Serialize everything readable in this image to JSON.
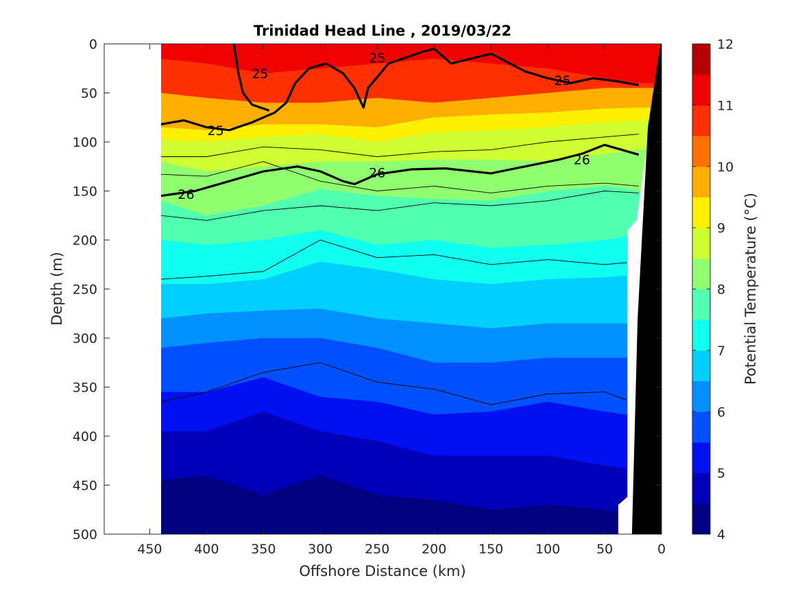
{
  "chart_data": {
    "type": "contourf",
    "title": "Trinidad Head Line , 2019/03/22",
    "xlabel": "Offshore Distance (km)",
    "ylabel": "Depth (m)",
    "colorbar_label": "Potential Temperature (°C)",
    "xlim": [
      490,
      0
    ],
    "ylim": [
      500,
      0
    ],
    "x_direction": "reversed",
    "y_direction": "reversed",
    "x_ticks": [
      450,
      400,
      350,
      300,
      250,
      200,
      150,
      100,
      50,
      0
    ],
    "y_ticks": [
      0,
      50,
      100,
      150,
      200,
      250,
      300,
      350,
      400,
      450,
      500
    ],
    "colorbar": {
      "min": 4,
      "max": 12,
      "step": 0.5,
      "tick_labels": [
        12,
        11,
        10,
        9,
        8,
        7,
        6,
        5,
        4
      ],
      "level_colors": [
        "#000080",
        "#0000b8",
        "#0010f0",
        "#0050ff",
        "#0090ff",
        "#00cfff",
        "#10ffef",
        "#50ffaf",
        "#90ff70",
        "#cfff30",
        "#ffef00",
        "#ffaf00",
        "#ff7000",
        "#ff3000",
        "#f00000",
        "#b80000"
      ]
    },
    "data_extent_km": [
      440,
      0
    ],
    "isotherm_profiles": [
      {
        "temp": 11,
        "points": [
          [
            440,
            15
          ],
          [
            400,
            20
          ],
          [
            350,
            30
          ],
          [
            300,
            25
          ],
          [
            250,
            20
          ],
          [
            200,
            15
          ],
          [
            150,
            20
          ],
          [
            100,
            25
          ],
          [
            50,
            35
          ],
          [
            20,
            40
          ]
        ]
      },
      {
        "temp": 10,
        "points": [
          [
            440,
            50
          ],
          [
            400,
            55
          ],
          [
            350,
            60
          ],
          [
            300,
            60
          ],
          [
            250,
            55
          ],
          [
            200,
            60
          ],
          [
            150,
            55
          ],
          [
            100,
            50
          ],
          [
            50,
            45
          ],
          [
            20,
            45
          ]
        ]
      },
      {
        "temp": 9.5,
        "points": [
          [
            440,
            85
          ],
          [
            400,
            88
          ],
          [
            350,
            82
          ],
          [
            300,
            82
          ],
          [
            250,
            85
          ],
          [
            200,
            75
          ],
          [
            150,
            72
          ],
          [
            100,
            70
          ],
          [
            50,
            66
          ],
          [
            20,
            65
          ]
        ]
      },
      {
        "temp": 9,
        "points": [
          [
            440,
            98
          ],
          [
            400,
            100
          ],
          [
            350,
            95
          ],
          [
            300,
            92
          ],
          [
            250,
            100
          ],
          [
            200,
            90
          ],
          [
            150,
            88
          ],
          [
            100,
            85
          ],
          [
            50,
            80
          ],
          [
            20,
            78
          ]
        ]
      },
      {
        "temp": 8.5,
        "points": [
          [
            440,
            120
          ],
          [
            400,
            130
          ],
          [
            350,
            125
          ],
          [
            300,
            120
          ],
          [
            250,
            120
          ],
          [
            200,
            118
          ],
          [
            150,
            118
          ],
          [
            100,
            120
          ],
          [
            50,
            112
          ],
          [
            20,
            108
          ]
        ]
      },
      {
        "temp": 8,
        "points": [
          [
            440,
            160
          ],
          [
            400,
            175
          ],
          [
            350,
            165
          ],
          [
            300,
            148
          ],
          [
            250,
            155
          ],
          [
            200,
            158
          ],
          [
            150,
            160
          ],
          [
            100,
            150
          ],
          [
            50,
            145
          ],
          [
            20,
            150
          ]
        ]
      },
      {
        "temp": 7.5,
        "points": [
          [
            440,
            200
          ],
          [
            400,
            205
          ],
          [
            350,
            200
          ],
          [
            300,
            190
          ],
          [
            250,
            205
          ],
          [
            200,
            200
          ],
          [
            150,
            208
          ],
          [
            100,
            205
          ],
          [
            50,
            200
          ],
          [
            20,
            195
          ]
        ]
      },
      {
        "temp": 7,
        "points": [
          [
            440,
            245
          ],
          [
            400,
            245
          ],
          [
            350,
            240
          ],
          [
            300,
            222
          ],
          [
            250,
            230
          ],
          [
            200,
            240
          ],
          [
            150,
            245
          ],
          [
            100,
            240
          ],
          [
            50,
            238
          ],
          [
            20,
            235
          ]
        ]
      },
      {
        "temp": 6.5,
        "points": [
          [
            440,
            280
          ],
          [
            400,
            275
          ],
          [
            350,
            272
          ],
          [
            300,
            270
          ],
          [
            250,
            280
          ],
          [
            200,
            285
          ],
          [
            150,
            290
          ],
          [
            100,
            285
          ],
          [
            50,
            285
          ],
          [
            20,
            285
          ]
        ]
      },
      {
        "temp": 6,
        "points": [
          [
            440,
            310
          ],
          [
            400,
            305
          ],
          [
            350,
            300
          ],
          [
            300,
            300
          ],
          [
            250,
            310
          ],
          [
            200,
            325
          ],
          [
            150,
            325
          ],
          [
            100,
            320
          ],
          [
            50,
            320
          ],
          [
            20,
            320
          ]
        ]
      },
      {
        "temp": 5.5,
        "points": [
          [
            440,
            355
          ],
          [
            400,
            355
          ],
          [
            350,
            340
          ],
          [
            300,
            360
          ],
          [
            250,
            365
          ],
          [
            200,
            378
          ],
          [
            150,
            375
          ],
          [
            100,
            365
          ],
          [
            50,
            375
          ],
          [
            20,
            380
          ]
        ]
      },
      {
        "temp": 5,
        "points": [
          [
            440,
            395
          ],
          [
            400,
            395
          ],
          [
            350,
            375
          ],
          [
            300,
            395
          ],
          [
            250,
            405
          ],
          [
            200,
            420
          ],
          [
            150,
            420
          ],
          [
            100,
            420
          ],
          [
            50,
            430
          ],
          [
            20,
            435
          ]
        ]
      },
      {
        "temp": 4.5,
        "points": [
          [
            440,
            445
          ],
          [
            400,
            440
          ],
          [
            350,
            460
          ],
          [
            300,
            440
          ],
          [
            250,
            460
          ],
          [
            200,
            465
          ],
          [
            150,
            475
          ],
          [
            100,
            470
          ],
          [
            50,
            475
          ],
          [
            20,
            480
          ]
        ]
      }
    ],
    "density_contours_thin": [
      {
        "points": [
          [
            440,
            115
          ],
          [
            400,
            115
          ],
          [
            350,
            105
          ],
          [
            300,
            108
          ],
          [
            250,
            115
          ],
          [
            200,
            110
          ],
          [
            150,
            108
          ],
          [
            100,
            100
          ],
          [
            50,
            95
          ],
          [
            20,
            92
          ]
        ]
      },
      {
        "points": [
          [
            440,
            133
          ],
          [
            400,
            135
          ],
          [
            350,
            120
          ],
          [
            300,
            140
          ],
          [
            250,
            150
          ],
          [
            200,
            145
          ],
          [
            150,
            152
          ],
          [
            100,
            145
          ],
          [
            50,
            142
          ],
          [
            20,
            145
          ]
        ]
      },
      {
        "points": [
          [
            440,
            175
          ],
          [
            400,
            180
          ],
          [
            350,
            170
          ],
          [
            300,
            165
          ],
          [
            250,
            170
          ],
          [
            200,
            162
          ],
          [
            150,
            165
          ],
          [
            100,
            160
          ],
          [
            50,
            150
          ],
          [
            20,
            152
          ]
        ]
      },
      {
        "points": [
          [
            440,
            240
          ],
          [
            400,
            237
          ],
          [
            350,
            232
          ],
          [
            300,
            200
          ],
          [
            250,
            218
          ],
          [
            200,
            215
          ],
          [
            150,
            225
          ],
          [
            100,
            220
          ],
          [
            50,
            225
          ],
          [
            20,
            222
          ]
        ]
      },
      {
        "points": [
          [
            440,
            365
          ],
          [
            400,
            355
          ],
          [
            350,
            335
          ],
          [
            300,
            325
          ],
          [
            250,
            345
          ],
          [
            200,
            352
          ],
          [
            150,
            368
          ],
          [
            100,
            357
          ],
          [
            50,
            355
          ],
          [
            20,
            368
          ]
        ]
      }
    ],
    "density_contours_thick": [
      {
        "label": "25",
        "points": [
          [
            440,
            82
          ],
          [
            420,
            78
          ],
          [
            400,
            85
          ],
          [
            380,
            88
          ],
          [
            360,
            80
          ],
          [
            340,
            70
          ],
          [
            330,
            60
          ],
          [
            322,
            40
          ],
          [
            310,
            25
          ],
          [
            295,
            20
          ],
          [
            280,
            30
          ],
          [
            270,
            45
          ],
          [
            262,
            65
          ],
          [
            258,
            45
          ],
          [
            240,
            20
          ],
          [
            210,
            8
          ],
          [
            200,
            5
          ],
          [
            185,
            20
          ],
          [
            150,
            10
          ],
          [
            120,
            28
          ],
          [
            100,
            35
          ],
          [
            80,
            40
          ],
          [
            60,
            35
          ],
          [
            40,
            38
          ],
          [
            20,
            42
          ]
        ],
        "label_at": [
          395,
          90
        ]
      },
      {
        "label": "25",
        "points": [
          [
            376,
            0
          ],
          [
            372,
            30
          ],
          [
            368,
            50
          ],
          [
            360,
            62
          ],
          [
            345,
            68
          ]
        ],
        "label_at": [
          360,
          30
        ]
      },
      {
        "label": "26",
        "points": [
          [
            440,
            155
          ],
          [
            410,
            150
          ],
          [
            380,
            140
          ],
          [
            350,
            130
          ],
          [
            320,
            125
          ],
          [
            300,
            130
          ],
          [
            280,
            140
          ],
          [
            270,
            143
          ],
          [
            250,
            133
          ],
          [
            220,
            128
          ],
          [
            190,
            127
          ],
          [
            150,
            132
          ],
          [
            120,
            125
          ],
          [
            90,
            118
          ],
          [
            70,
            112
          ],
          [
            50,
            103
          ],
          [
            20,
            113
          ]
        ],
        "label_at": [
          420,
          153
        ]
      }
    ],
    "contour_labels": [
      {
        "text": "25",
        "x": 392,
        "y": 88
      },
      {
        "text": "25",
        "x": 353,
        "y": 30
      },
      {
        "text": "25",
        "x": 250,
        "y": 14
      },
      {
        "text": "25",
        "x": 87,
        "y": 37
      },
      {
        "text": "26",
        "x": 418,
        "y": 153
      },
      {
        "text": "26",
        "x": 250,
        "y": 131
      },
      {
        "text": "26",
        "x": 70,
        "y": 118
      }
    ],
    "bathymetry_km_by_depth": [
      [
        21,
        0
      ],
      [
        8,
        0
      ],
      [
        21,
        500
      ],
      [
        26,
        500
      ]
    ]
  }
}
